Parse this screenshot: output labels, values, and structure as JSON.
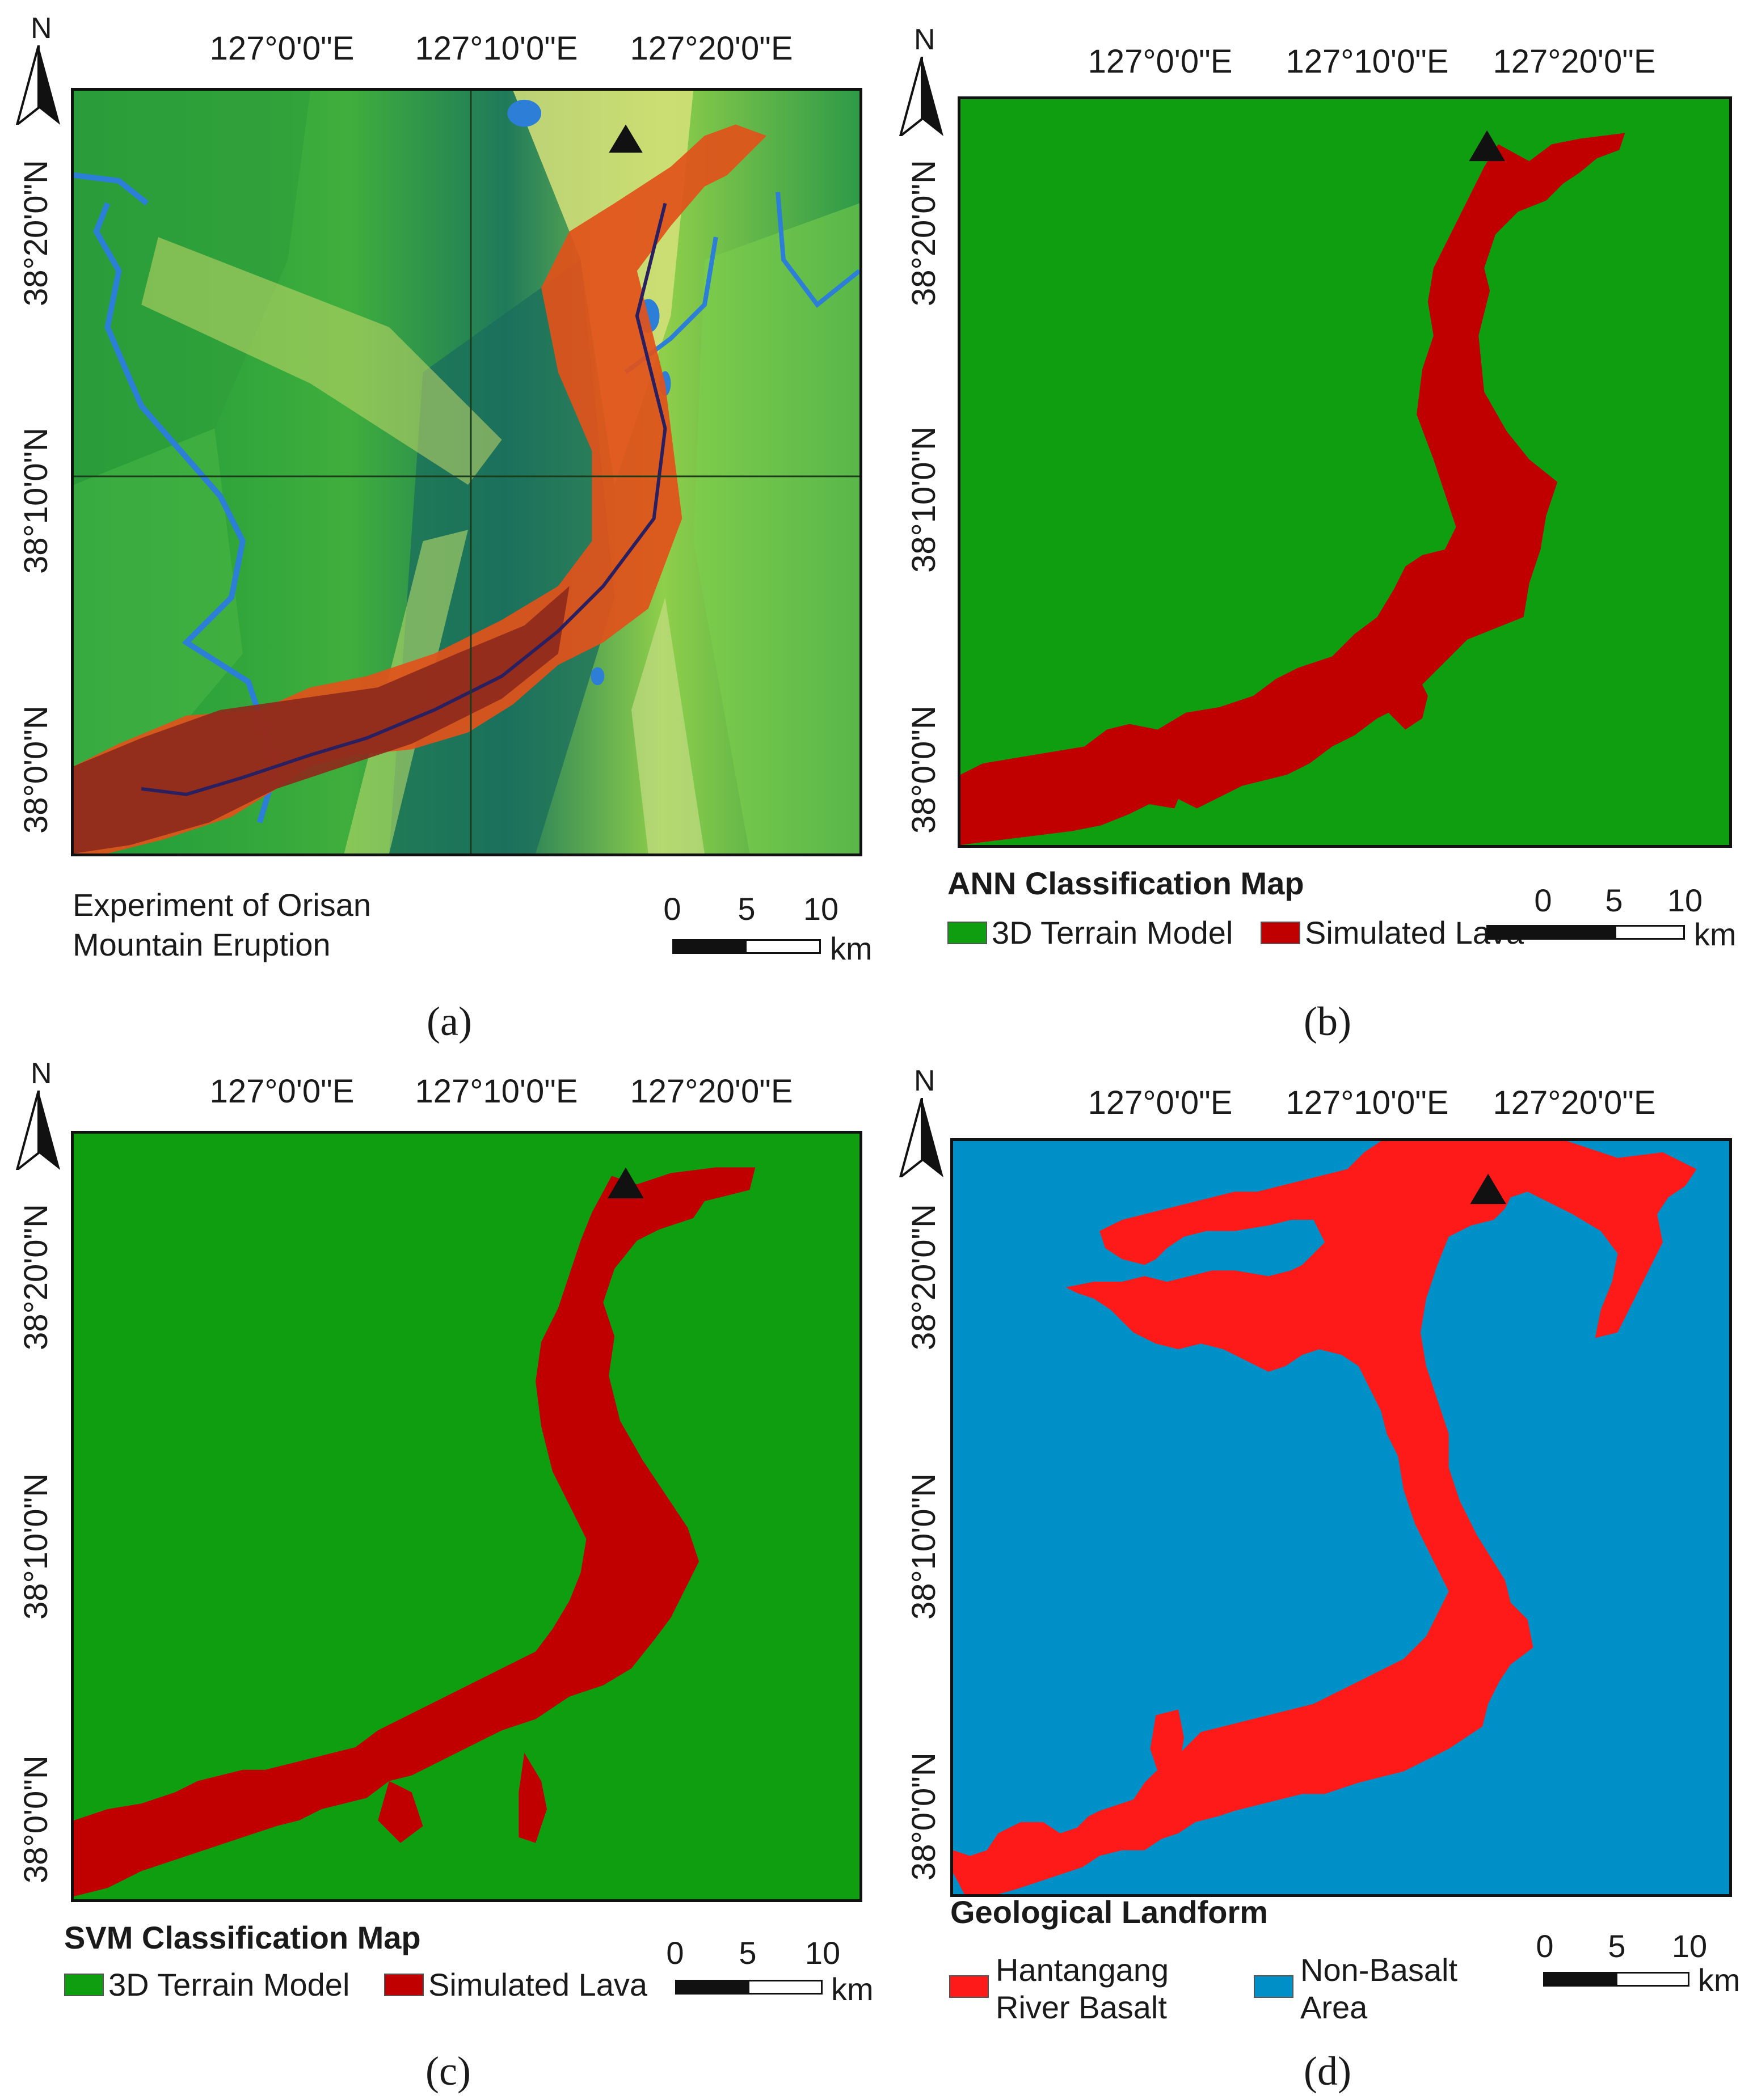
{
  "axes": {
    "lon_labels": [
      "127°0'0\"E",
      "127°10'0\"E",
      "127°20'0\"E"
    ],
    "lat_labels": [
      "38°20'0\"N",
      "38°10'0\"N",
      "38°0'0\"N"
    ]
  },
  "north_label": "N",
  "scale": {
    "ticks": [
      "0",
      "5",
      "10"
    ],
    "unit": "km"
  },
  "colors": {
    "terrain_green": "#0f9e0f",
    "lava_dark_red": "#c00000",
    "basalt_red": "#ff1a1a",
    "non_basalt_blue": "#0090c8"
  },
  "panels": {
    "a": {
      "caption_line1": "Experiment of Orisan",
      "caption_line2": "Mountain Eruption",
      "letter": "(a)"
    },
    "b": {
      "title": "ANN Classification Map",
      "legend": [
        "3D Terrain Model",
        "Simulated Lava"
      ],
      "letter": "(b)"
    },
    "c": {
      "title": "SVM Classification Map",
      "legend": [
        "3D Terrain Model",
        "Simulated Lava"
      ],
      "letter": "(c)"
    },
    "d": {
      "title": "Geological Landform",
      "legend_basalt_line1": "Hantangang",
      "legend_basalt_line2": "River Basalt",
      "legend_nonbasalt_line1": "Non-Basalt",
      "legend_nonbasalt_line2": "Area",
      "letter": "(d)"
    }
  }
}
